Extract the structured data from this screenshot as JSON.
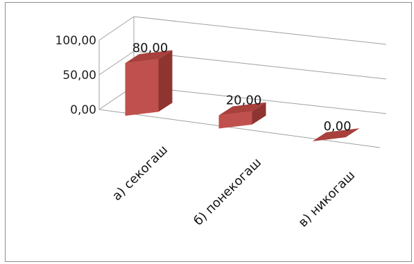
{
  "chart_data": {
    "type": "bar",
    "categories": [
      "а) секогаш",
      "б) понекогаш",
      "в) никогаш"
    ],
    "values": [
      80,
      20,
      0
    ],
    "data_labels": [
      "80,00",
      "20,00",
      "0,00"
    ],
    "y_ticks": [
      "0,00",
      "50,00",
      "100,00"
    ],
    "ylim": [
      0,
      100
    ],
    "grid": true,
    "three_d": true,
    "bar_color": "#c0504d",
    "legend": "none"
  }
}
